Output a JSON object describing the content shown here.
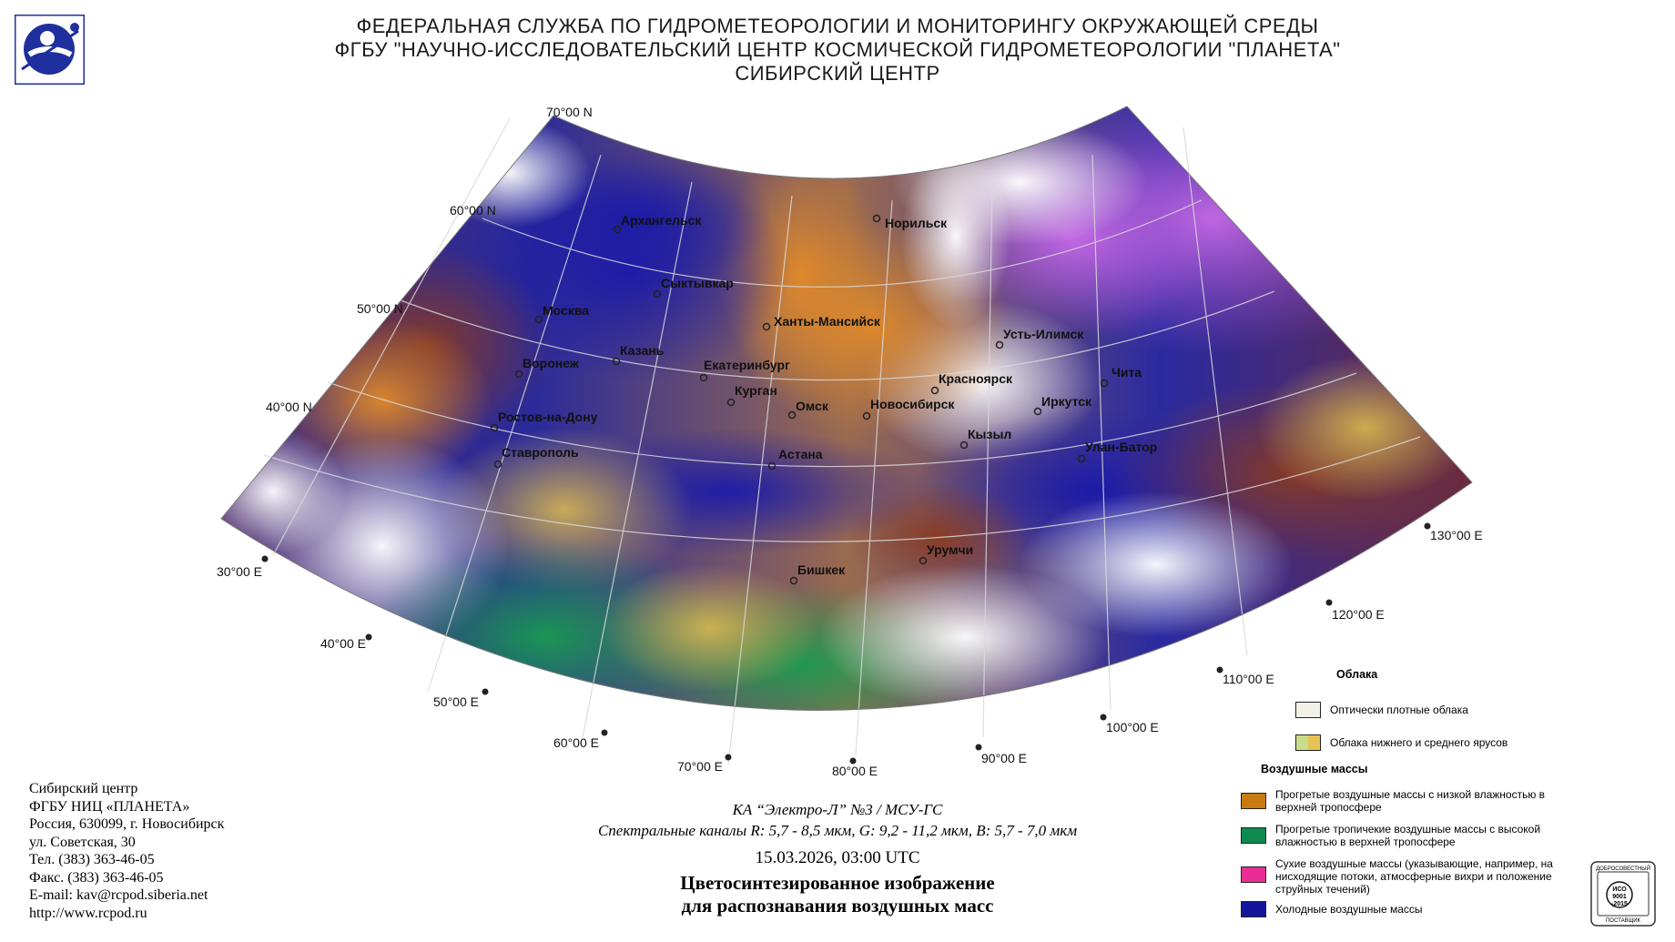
{
  "header": {
    "line1": "ФЕДЕРАЛЬНАЯ СЛУЖБА ПО ГИДРОМЕТЕОРОЛОГИИ И МОНИТОРИНГУ ОКРУЖАЮЩЕЙ СРЕДЫ",
    "line2": "ФГБУ \"НАУЧНО-ИССЛЕДОВАТЕЛЬСКИЙ ЦЕНТР КОСМИЧЕСКОЙ ГИДРОМЕТЕОРОЛОГИИ \"ПЛАНЕТА\"",
    "line3": "СИБИРСКИЙ ЦЕНТР"
  },
  "logo": {
    "icon": "roshydromet-emblem-icon",
    "color": "#1f2f9e"
  },
  "map": {
    "latitude_labels": [
      "70°00 N",
      "60°00 N",
      "50°00 N",
      "40°00 N"
    ],
    "longitude_labels": [
      "30°00 E",
      "40°00 E",
      "50°00 E",
      "60°00 E",
      "70°00 E",
      "80°00 E",
      "90°00 E",
      "100°00 E",
      "110°00 E",
      "120°00 E",
      "130°00 E"
    ],
    "cities": [
      "Архангельск",
      "Норильск",
      "Сыктывкар",
      "Москва",
      "Ханты-Мансийск",
      "Усть-Илимск",
      "Казань",
      "Воронеж",
      "Екатеринбург",
      "Красноярск",
      "Чита",
      "Курган",
      "Омск",
      "Новосибирск",
      "Иркутск",
      "Ростов-на-Дону",
      "Кызыл",
      "Улан-Батор",
      "Ставрополь",
      "Астана",
      "Урумчи",
      "Бишкек"
    ]
  },
  "address": {
    "lines": [
      "Сибирский центр",
      "ФГБУ НИЦ «ПЛАНЕТА»",
      "Россия, 630099, г. Новосибирск",
      "ул. Советская, 30",
      "Тел. (383) 363-46-05",
      "Факс. (383) 363-46-05",
      "E-mail: kav@rcpod.siberia.net",
      "http://www.rcpod.ru"
    ]
  },
  "caption": {
    "satellite": "КА “Электро-Л” №3 / МСУ-ГС",
    "bands": "Спектральные каналы R: 5,7 - 8,5 мкм, G: 9,2 - 11,2 мкм, B: 5,7 - 7,0 мкм",
    "datetime": "15.03.2026, 03:00 UTC",
    "title_line1": "Цветосинтезированное изображение",
    "title_line2": "для распознавания воздушных масс"
  },
  "legend": {
    "clouds_heading": "Облака",
    "clouds_dense": "Оптически плотные облака",
    "clouds_low_mid": "Облака нижнего и среднего ярусов",
    "airmass_heading": "Воздушные массы",
    "warm_low_humidity": "Прогретые воздушные массы с низкой влажностью в верхней тропосфере",
    "warm_tropical_high_humidity": "Прогретые тропичекие воздушные массы с высокой влажностью в верхней тропосфере",
    "dry_airmass": "Сухие воздушные массы (указывающие, например, на нисходящие потоки, атмосферные вихри и положение струйных течений)",
    "cold_airmass": "Холодные воздушные массы",
    "colors": {
      "dense_cloud": "#f2f1e6",
      "low_mid_left": "#c8dd8a",
      "low_mid_right": "#e8c254",
      "warm_low_humidity": "#c97a10",
      "warm_tropical": "#0e8a4e",
      "dry": "#ea2d96",
      "cold": "#13169a"
    }
  },
  "badge": {
    "text_top": "ДОБРОСОВЕСТНЫЙ",
    "text_mid1": "ИСО",
    "text_mid2": "9001",
    "text_mid3": "-2015",
    "text_bottom": "ПОСТАВЩИК"
  }
}
